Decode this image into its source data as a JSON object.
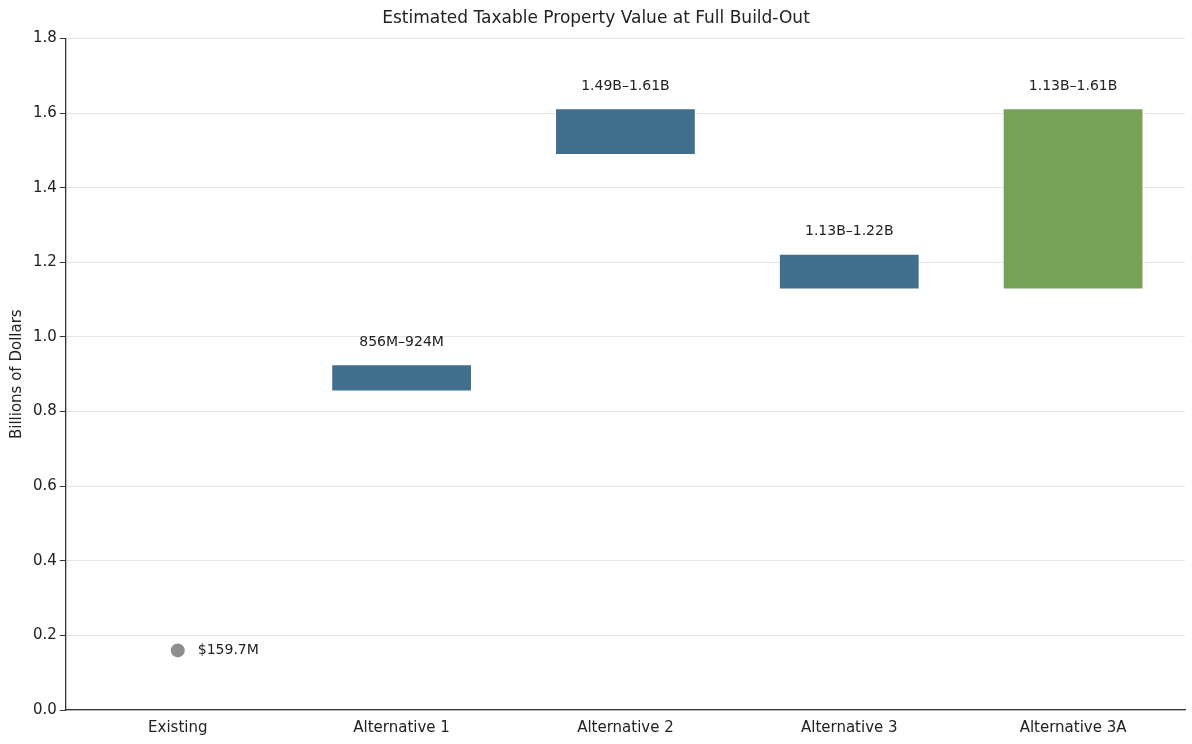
{
  "chart_data": {
    "type": "bar",
    "title": "Estimated Taxable Property Value at Full Build-Out",
    "ylabel": "Billions of Dollars",
    "categories": [
      "Existing",
      "Alternative 1",
      "Alternative 2",
      "Alternative 3",
      "Alternative 3A"
    ],
    "series": [
      {
        "colors": [
          null,
          "#41708e",
          "#41708e",
          "#41708e",
          "#78a258"
        ],
        "base": [
          null,
          0.856,
          1.49,
          1.13,
          1.13
        ],
        "values": [
          null,
          0.068,
          0.12,
          0.09,
          0.48
        ]
      },
      {
        "type": "scatter",
        "color": "#8c8f8c",
        "x": [
          "Existing"
        ],
        "values": [
          0.1597
        ]
      }
    ],
    "annotations": [
      {
        "text": "856M–924M",
        "x": "Alternative 1",
        "y": 0.924
      },
      {
        "text": "1.49B–1.61B",
        "x": "Alternative 2",
        "y": 1.61
      },
      {
        "text": "1.13B–1.22B",
        "x": "Alternative 3",
        "y": 1.22
      },
      {
        "text": "1.13B–1.61B",
        "x": "Alternative 3A",
        "y": 1.61
      },
      {
        "text": "$159.7M",
        "x": "Existing",
        "y": 0.1597
      }
    ],
    "ylim": [
      0,
      1.8
    ],
    "yticks": [
      {
        "value": 0,
        "label": "0.0"
      },
      0.2,
      0.4,
      0.6,
      0.8,
      {
        "value": 1,
        "label": "1.0"
      },
      1.2,
      1.4,
      1.6,
      1.8
    ],
    "grid": "y",
    "legend": false,
    "marker": "circle"
  }
}
